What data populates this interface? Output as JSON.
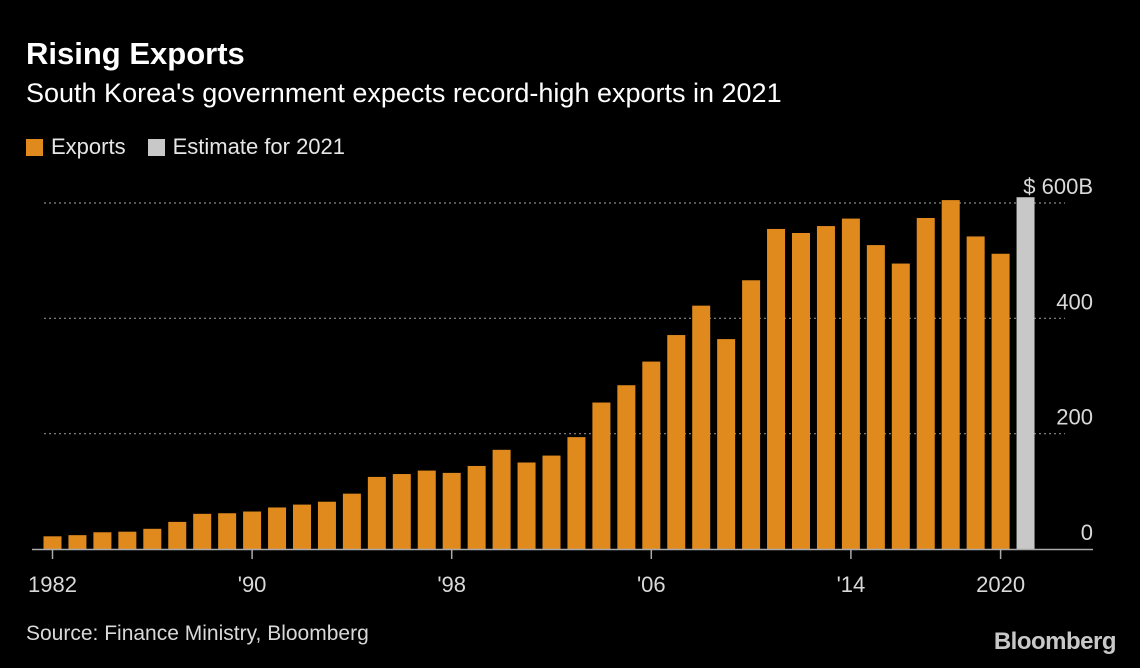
{
  "chart_data": {
    "type": "bar",
    "title": "Rising Exports",
    "subtitle": "South Korea's government expects record-high exports in 2021",
    "legend": [
      {
        "label": "Exports",
        "color": "#e08a1e"
      },
      {
        "label": "Estimate for 2021",
        "color": "#c8c8c8"
      }
    ],
    "legend_placement": "top-left",
    "x": [
      1982,
      1983,
      1984,
      1985,
      1986,
      1987,
      1988,
      1989,
      1990,
      1991,
      1992,
      1993,
      1994,
      1995,
      1996,
      1997,
      1998,
      1999,
      2000,
      2001,
      2002,
      2003,
      2004,
      2005,
      2006,
      2007,
      2008,
      2009,
      2010,
      2011,
      2012,
      2013,
      2014,
      2015,
      2016,
      2017,
      2018,
      2019,
      2020,
      2021
    ],
    "series": [
      {
        "name": "Exports",
        "color": "#e08a1e",
        "values": [
          22,
          24,
          29,
          30,
          35,
          47,
          61,
          62,
          65,
          72,
          77,
          82,
          96,
          125,
          130,
          136,
          132,
          144,
          172,
          150,
          162,
          194,
          254,
          284,
          325,
          371,
          422,
          364,
          466,
          555,
          548,
          560,
          573,
          527,
          495,
          574,
          605,
          542,
          512,
          null
        ]
      },
      {
        "name": "Estimate for 2021",
        "color": "#c8c8c8",
        "values": [
          null,
          null,
          null,
          null,
          null,
          null,
          null,
          null,
          null,
          null,
          null,
          null,
          null,
          null,
          null,
          null,
          null,
          null,
          null,
          null,
          null,
          null,
          null,
          null,
          null,
          null,
          null,
          null,
          null,
          null,
          null,
          null,
          null,
          null,
          null,
          null,
          null,
          null,
          null,
          610
        ]
      }
    ],
    "x_tick_labels": [
      {
        "year": 1982,
        "label": "1982"
      },
      {
        "year": 1990,
        "label": "'90"
      },
      {
        "year": 1998,
        "label": "'98"
      },
      {
        "year": 2006,
        "label": "'06"
      },
      {
        "year": 2014,
        "label": "'14"
      },
      {
        "year": 2020,
        "label": "2020"
      }
    ],
    "y_ticks": [
      {
        "value": 0,
        "label": "0"
      },
      {
        "value": 200,
        "label": "200"
      },
      {
        "value": 400,
        "label": "400"
      },
      {
        "value": 600,
        "label": "$ 600B"
      }
    ],
    "ylim": [
      0,
      600
    ],
    "grid": true,
    "grid_color": "#8a8a8a",
    "axis_color": "#aaaaaa",
    "tick_label_color": "#d9d9d9"
  },
  "footer": {
    "source": "Source: Finance Ministry, Bloomberg",
    "logo": "Bloomberg"
  }
}
